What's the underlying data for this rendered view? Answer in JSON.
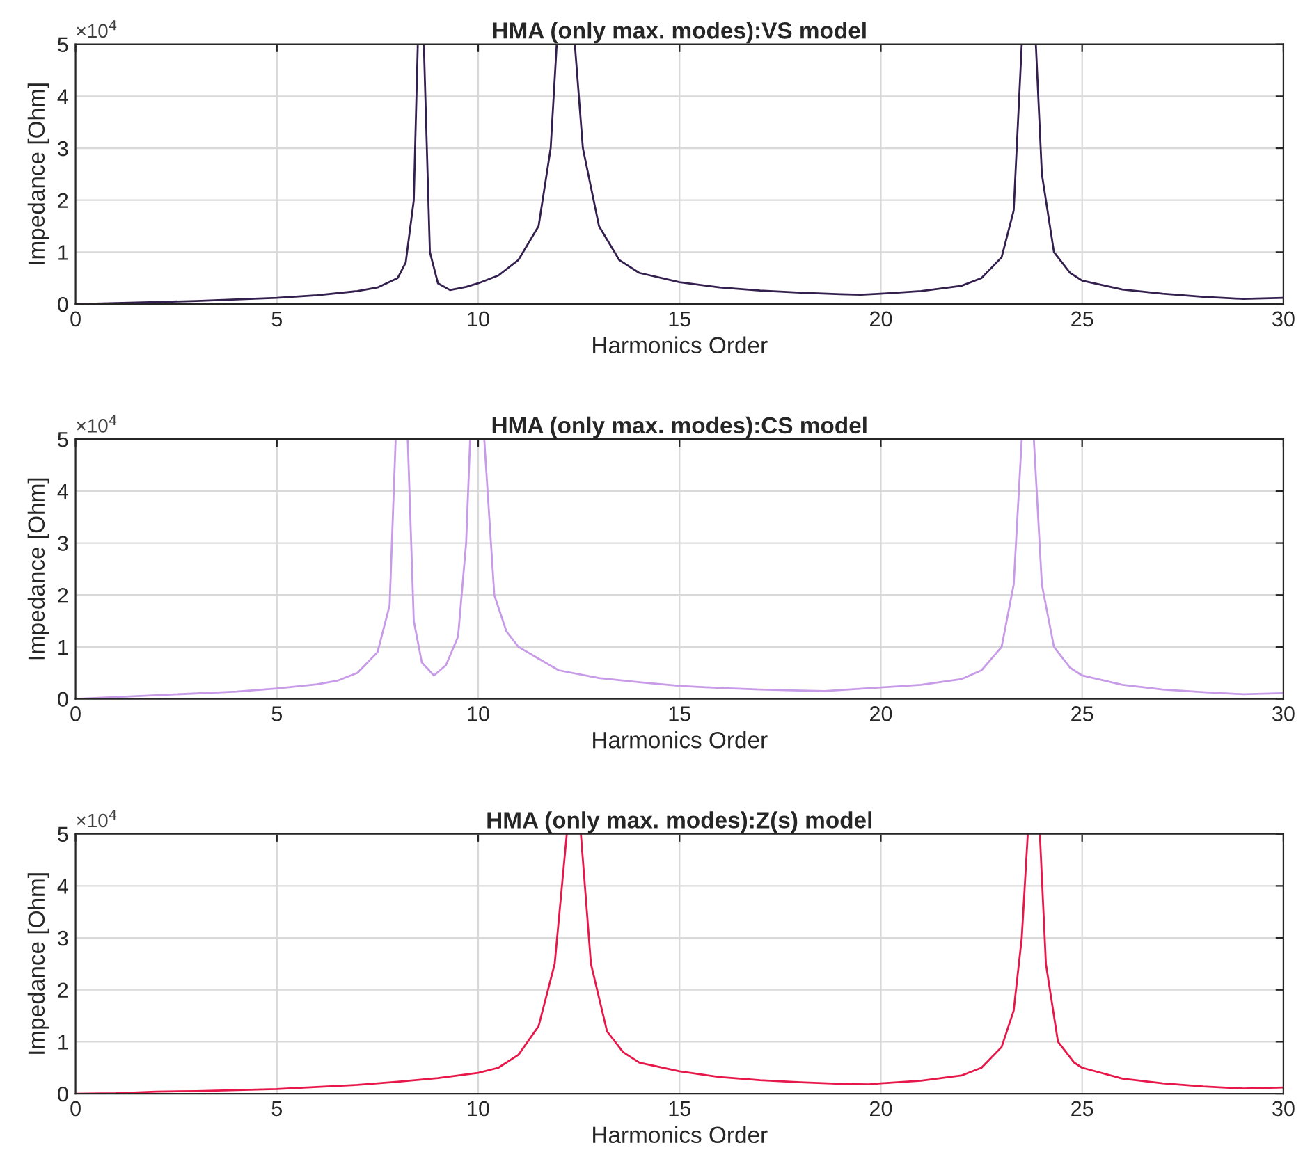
{
  "chart_data": [
    {
      "type": "line",
      "title": "HMA (only max. modes):VS model",
      "xlabel": "Harmonics Order",
      "ylabel": "Impedance [Ohm]",
      "annotations": [
        "×10$^{4}$"
      ],
      "xlim": [
        0,
        30
      ],
      "xticks": [
        0,
        5,
        10,
        15,
        20,
        25,
        30
      ],
      "ylim": [
        0,
        5
      ],
      "yticks": [
        0,
        1,
        2,
        3,
        4,
        5
      ],
      "grid": true,
      "line_style": "solid",
      "series": [
        {
          "color": "#34204f",
          "x": [
            0,
            1,
            2,
            3,
            4,
            5,
            6,
            7,
            7.5,
            8,
            8.2,
            8.4,
            8.5,
            8.6,
            8.65,
            8.8,
            9.0,
            9.3,
            9.7,
            10,
            10.5,
            11,
            11.5,
            11.8,
            11.95,
            12.2,
            12.4,
            12.6,
            13,
            13.5,
            14,
            15,
            16,
            17,
            18,
            19,
            19.5,
            20,
            21,
            22,
            22.5,
            23,
            23.3,
            23.5,
            23.7,
            23.85,
            24,
            24.3,
            24.7,
            25,
            26,
            27,
            28,
            29,
            30
          ],
          "values": [
            0,
            0.02,
            0.04,
            0.06,
            0.09,
            0.12,
            0.17,
            0.25,
            0.32,
            0.5,
            0.8,
            2.0,
            5.0,
            null,
            5.0,
            1.0,
            0.4,
            0.27,
            0.33,
            0.4,
            0.55,
            0.85,
            1.5,
            3.0,
            5.0,
            null,
            5.0,
            3.0,
            1.5,
            0.85,
            0.6,
            0.42,
            0.32,
            0.26,
            0.22,
            0.19,
            0.18,
            0.2,
            0.25,
            0.35,
            0.5,
            0.9,
            1.8,
            5.0,
            null,
            5.0,
            2.5,
            1.0,
            0.6,
            0.45,
            0.28,
            0.2,
            0.14,
            0.1,
            0.12
          ]
        }
      ]
    },
    {
      "type": "line",
      "title": "HMA (only max. modes):CS model",
      "xlabel": "Harmonics Order",
      "ylabel": "Impedance [Ohm]",
      "annotations": [
        "×10$^{4}$"
      ],
      "xlim": [
        0,
        30
      ],
      "xticks": [
        0,
        5,
        10,
        15,
        20,
        25,
        30
      ],
      "ylim": [
        0,
        5
      ],
      "yticks": [
        0,
        1,
        2,
        3,
        4,
        5
      ],
      "grid": true,
      "line_style": "solid",
      "series": [
        {
          "color": "#c79be8",
          "x": [
            0,
            2,
            4,
            5,
            6,
            6.5,
            7,
            7.5,
            7.8,
            7.95,
            8.1,
            8.25,
            8.4,
            8.6,
            8.9,
            9.2,
            9.5,
            9.7,
            9.8,
            10.0,
            10.15,
            10.4,
            10.7,
            11,
            12,
            13,
            14,
            15,
            16,
            17,
            18,
            18.6,
            19,
            20,
            21,
            22,
            22.5,
            23,
            23.3,
            23.5,
            23.65,
            23.8,
            24,
            24.3,
            24.7,
            25,
            26,
            27,
            28,
            29,
            30
          ],
          "values": [
            0,
            0.07,
            0.14,
            0.2,
            0.28,
            0.35,
            0.5,
            0.9,
            1.8,
            5.0,
            null,
            5.0,
            1.5,
            0.7,
            0.45,
            0.65,
            1.2,
            3.0,
            5.0,
            null,
            5.0,
            2.0,
            1.3,
            1.0,
            0.55,
            0.4,
            0.32,
            0.25,
            0.21,
            0.18,
            0.16,
            0.15,
            0.17,
            0.22,
            0.27,
            0.38,
            0.55,
            1.0,
            2.2,
            5.0,
            null,
            5.0,
            2.2,
            1.0,
            0.6,
            0.45,
            0.27,
            0.18,
            0.13,
            0.09,
            0.11
          ]
        }
      ]
    },
    {
      "type": "line",
      "title": "HMA (only max. modes):Z(s) model",
      "xlabel": "Harmonics Order",
      "ylabel": "Impedance [Ohm]",
      "annotations": [
        "×10$^{4}$"
      ],
      "xlim": [
        0,
        30
      ],
      "xticks": [
        0,
        5,
        10,
        15,
        20,
        25,
        30
      ],
      "ylim": [
        0,
        5
      ],
      "yticks": [
        0,
        1,
        2,
        3,
        4,
        5
      ],
      "grid": true,
      "line_style": "solid",
      "series": [
        {
          "color": "#e8174a",
          "x": [
            0,
            1,
            2,
            3,
            4,
            5,
            6,
            7,
            8,
            9,
            10,
            10.5,
            11,
            11.5,
            11.9,
            12.2,
            12.4,
            12.55,
            12.8,
            13.2,
            13.6,
            14,
            15,
            16,
            17,
            18,
            19,
            19.7,
            20,
            21,
            22,
            22.5,
            23,
            23.3,
            23.5,
            23.65,
            23.8,
            23.95,
            24.1,
            24.4,
            24.8,
            25,
            26,
            27,
            28,
            29,
            30
          ],
          "values": [
            0,
            0.01,
            0.04,
            0.05,
            0.07,
            0.09,
            0.13,
            0.17,
            0.23,
            0.3,
            0.4,
            0.5,
            0.75,
            1.3,
            2.5,
            5.0,
            null,
            5.0,
            2.5,
            1.2,
            0.8,
            0.6,
            0.43,
            0.32,
            0.26,
            0.22,
            0.19,
            0.18,
            0.2,
            0.25,
            0.35,
            0.5,
            0.9,
            1.6,
            3.0,
            5.0,
            null,
            5.0,
            2.5,
            1.0,
            0.6,
            0.5,
            0.29,
            0.2,
            0.14,
            0.1,
            0.12
          ]
        }
      ]
    }
  ]
}
